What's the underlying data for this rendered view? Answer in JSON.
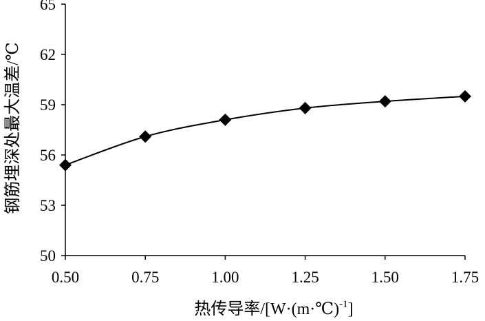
{
  "chart_data": {
    "type": "line",
    "xlabel_main": "热传导率/[W·(m·℃)",
    "xlabel_sup": "-1",
    "xlabel_close": "]",
    "ylabel": "钢筋埋深处最大温差/℃",
    "x_ticks": [
      "0.50",
      "0.75",
      "1.00",
      "1.25",
      "1.50",
      "1.75"
    ],
    "y_ticks": [
      "50",
      "53",
      "56",
      "59",
      "62",
      "65"
    ],
    "xlim": [
      0.5,
      1.75
    ],
    "ylim": [
      50,
      65
    ],
    "grid": false,
    "marker": "diamond",
    "series": [
      {
        "x": [
          0.5,
          0.75,
          1.0,
          1.25,
          1.5,
          1.75
        ],
        "y": [
          55.4,
          57.1,
          58.1,
          58.8,
          59.2,
          59.5
        ]
      }
    ]
  }
}
